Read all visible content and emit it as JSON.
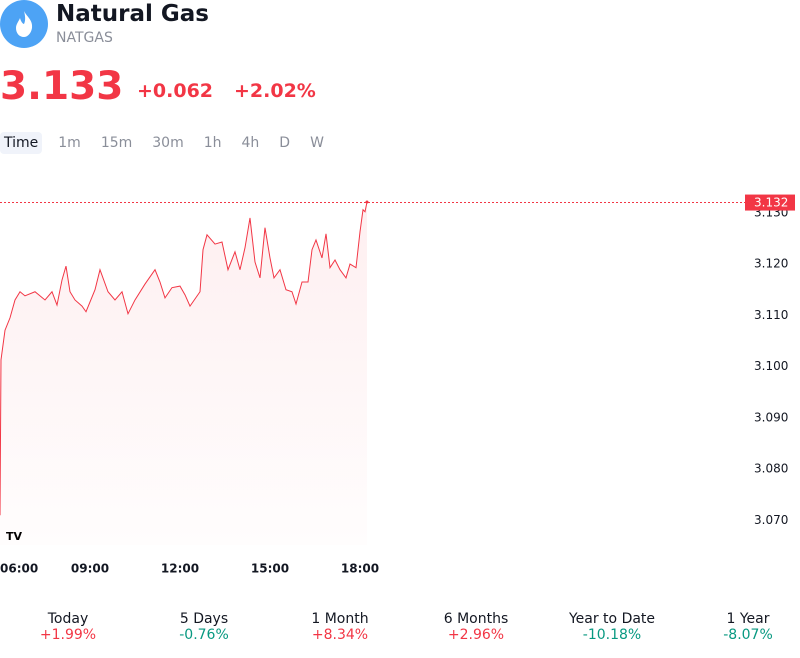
{
  "header": {
    "name": "Natural Gas",
    "symbol": "NATGAS",
    "price": "3.133",
    "change": "+0.062",
    "change_percent": "+2.02%"
  },
  "intervals": [
    "Time",
    "1m",
    "15m",
    "30m",
    "1h",
    "4h",
    "D",
    "W"
  ],
  "selected_interval": 0,
  "chart_data": {
    "type": "line",
    "color": "#f23645",
    "x": [
      6.0,
      6.033,
      6.167,
      6.333,
      6.5,
      6.667,
      6.833,
      7.167,
      7.5,
      7.733,
      7.9,
      8.067,
      8.2,
      8.333,
      8.5,
      8.733,
      8.867,
      9.167,
      9.333,
      9.6,
      9.833,
      10.067,
      10.267,
      10.5,
      10.833,
      11.167,
      11.333,
      11.5,
      11.733,
      12.0,
      12.167,
      12.333,
      12.667,
      12.767,
      12.9,
      13.167,
      13.4,
      13.6,
      13.833,
      14.0,
      14.167,
      14.333,
      14.5,
      14.667,
      14.833,
      15.0,
      15.133,
      15.333,
      15.533,
      15.733,
      15.867,
      16.067,
      16.267,
      16.4,
      16.533,
      16.733,
      16.867,
      17.0,
      17.167,
      17.333,
      17.533,
      17.667,
      17.867,
      18.0,
      18.1,
      18.167,
      18.233
    ],
    "series": [
      {
        "name": "NATGAS",
        "color": "#f23645",
        "values": [
          3.071,
          3.1013,
          3.1071,
          3.1095,
          3.113,
          3.1146,
          3.1138,
          3.1146,
          3.113,
          3.1146,
          3.112,
          3.1169,
          3.1196,
          3.1146,
          3.113,
          3.1118,
          3.1107,
          3.115,
          3.1189,
          3.1146,
          3.113,
          3.1146,
          3.1103,
          3.113,
          3.1161,
          3.1189,
          3.1165,
          3.1134,
          3.1154,
          3.1157,
          3.114,
          3.1118,
          3.1146,
          3.1228,
          3.1257,
          3.1239,
          3.1243,
          3.1189,
          3.1224,
          3.1189,
          3.1232,
          3.129,
          3.1204,
          3.1173,
          3.1271,
          3.1212,
          3.1173,
          3.1189,
          3.115,
          3.1146,
          3.1122,
          3.1165,
          3.1165,
          3.1228,
          3.1247,
          3.1212,
          3.1259,
          3.1193,
          3.1208,
          3.1189,
          3.1173,
          3.12,
          3.1193,
          3.1263,
          3.1306,
          3.1302,
          3.1321
        ]
      }
    ],
    "xlim": [
      6,
      30.667
    ],
    "ylim": [
      3.0652,
      3.1364
    ],
    "xticks": [
      {
        "value": 6,
        "label": "06:00"
      },
      {
        "value": 9,
        "label": "09:00"
      },
      {
        "value": 12,
        "label": "12:00"
      },
      {
        "value": 15,
        "label": "15:00"
      },
      {
        "value": 18,
        "label": "18:00"
      }
    ],
    "yticks": [
      {
        "value": 3.07,
        "label": "3.070"
      },
      {
        "value": 3.08,
        "label": "3.080"
      },
      {
        "value": 3.09,
        "label": "3.090"
      },
      {
        "value": 3.1,
        "label": "3.100"
      },
      {
        "value": 3.11,
        "label": "3.110"
      },
      {
        "value": 3.12,
        "label": "3.120"
      },
      {
        "value": 3.13,
        "label": "3.130"
      }
    ],
    "last_price": {
      "value": 3.132,
      "label": "3.132"
    }
  },
  "performance": [
    {
      "period": "Today",
      "change": "+1.99%",
      "color": "#f23645"
    },
    {
      "period": "5 Days",
      "change": "-0.76%",
      "color": "#089981"
    },
    {
      "period": "1 Month",
      "change": "+8.34%",
      "color": "#f23645"
    },
    {
      "period": "6 Months",
      "change": "+2.96%",
      "color": "#f23645"
    },
    {
      "period": "Year to Date",
      "change": "-10.18%",
      "color": "#089981"
    },
    {
      "period": "1 Year",
      "change": "-8.07%",
      "color": "#089981"
    }
  ]
}
